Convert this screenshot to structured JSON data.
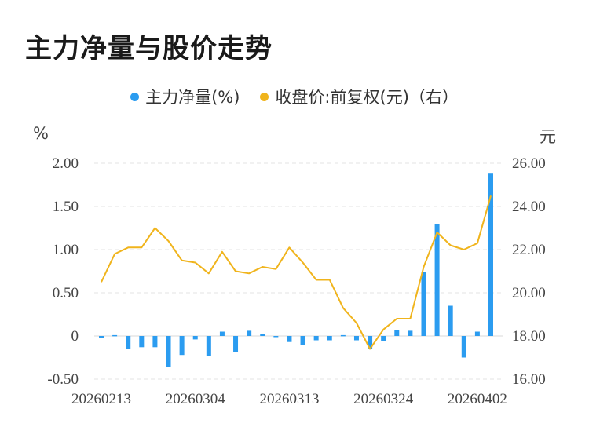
{
  "title": "主力净量与股价走势",
  "legend": {
    "bar_label": "主力净量(%)",
    "line_label": "收盘价:前复权(元)（右）"
  },
  "units": {
    "left": "%",
    "right": "元"
  },
  "colors": {
    "bar": "#2b9cf0",
    "line": "#f0b41c",
    "grid": "#e3e3e3",
    "text": "#444444"
  },
  "chart_data": {
    "type": "bar+line",
    "title": "主力净量与股价走势",
    "left_axis": {
      "unit": "%",
      "ylim": [
        -0.5,
        2.0
      ],
      "ticks": [
        "2.00",
        "1.50",
        "1.00",
        "0.50",
        "0",
        "-0.50"
      ],
      "tick_values": [
        2.0,
        1.5,
        1.0,
        0.5,
        0,
        -0.5
      ]
    },
    "right_axis": {
      "unit": "元",
      "ylim": [
        16.0,
        26.0
      ],
      "ticks": [
        "26.00",
        "24.00",
        "22.00",
        "20.00",
        "18.00",
        "16.00"
      ],
      "tick_values": [
        26,
        24,
        22,
        20,
        18,
        16
      ]
    },
    "x_tick_labels": [
      {
        "index": 0,
        "label": "20260213"
      },
      {
        "index": 7,
        "label": "20260304"
      },
      {
        "index": 14,
        "label": "20260313"
      },
      {
        "index": 21,
        "label": "20260324"
      },
      {
        "index": 28,
        "label": "20260402"
      }
    ],
    "series": [
      {
        "name": "主力净量(%)",
        "type": "bar",
        "axis": "left",
        "values": [
          -0.02,
          0.01,
          -0.15,
          -0.13,
          -0.13,
          -0.36,
          -0.22,
          -0.04,
          -0.23,
          0.05,
          -0.19,
          0.06,
          0.02,
          -0.01,
          -0.07,
          -0.1,
          -0.05,
          -0.05,
          0.01,
          -0.05,
          -0.15,
          -0.06,
          0.07,
          0.06,
          0.74,
          1.3,
          0.35,
          -0.25,
          0.05,
          1.88
        ]
      },
      {
        "name": "收盘价:前复权(元)（右）",
        "type": "line",
        "axis": "right",
        "values": [
          20.5,
          21.8,
          22.1,
          22.1,
          23.0,
          22.4,
          21.5,
          21.4,
          20.9,
          21.9,
          21.0,
          20.9,
          21.2,
          21.1,
          22.1,
          21.4,
          20.6,
          20.6,
          19.3,
          18.6,
          17.4,
          18.3,
          18.8,
          18.8,
          21.2,
          22.8,
          22.2,
          22.0,
          22.3,
          24.5
        ]
      }
    ],
    "grid": true,
    "legend_position": "top-center"
  }
}
